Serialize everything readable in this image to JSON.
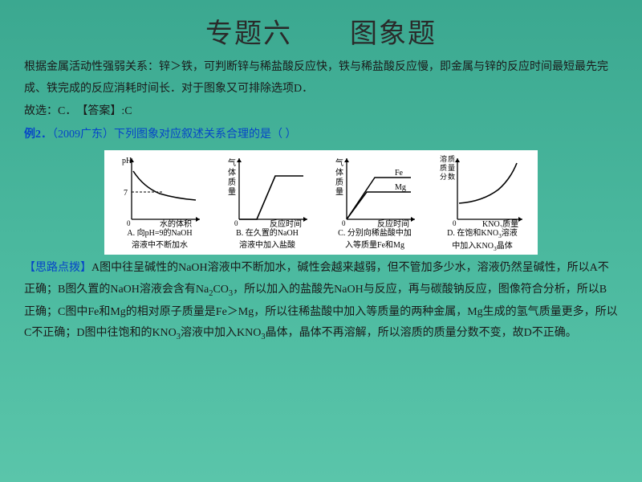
{
  "title": "专题六　　图象题",
  "intro": {
    "p1": "根据金属活动性强弱关系：锌＞铁，可判断锌与稀盐酸反应快，铁与稀盐酸反应慢，即金属与锌的反应时间最短最先完成、铁完成的反应消耗时间长．对于图象又可排除选项D．",
    "p2": "故选：C．　【答案】:C"
  },
  "example": {
    "prefix": "例2．",
    "source": "（2009广东）",
    "question": "下列图象对应叙述关系合理的是（  ）"
  },
  "charts": {
    "background": "#ffffff",
    "stroke": "#000000",
    "A": {
      "ylabel": "pH",
      "xlabel": "水的体积",
      "y_tick": "7",
      "caption1": "A. 向pH=9的NaOH",
      "caption2": "溶液中不断加水"
    },
    "B": {
      "ylabel_vert": "气体质量",
      "xlabel": "反应时间",
      "caption1": "B. 在久置的NaOH",
      "caption2": "溶液中加入盐酸"
    },
    "C": {
      "ylabel_vert": "气体质量",
      "xlabel": "反应时间",
      "line1": "Fe",
      "line2": "Mg",
      "caption1": "C. 分别向稀盐酸中加",
      "caption2": "入等质量Fe和Mg"
    },
    "D": {
      "ylabel_vert": "溶质质量分数",
      "xlabel_html": "KNO₃质量",
      "caption1_html": "D. 在饱和KNO₃溶液",
      "caption2_html": "中加入KNO₃晶体"
    }
  },
  "analysis": {
    "label": "【思路点拨】",
    "text_html": "A图中往呈碱性的NaOH溶液中不断加水，碱性会越来越弱，但不管加多少水，溶液仍然呈碱性，所以A不正确；B图久置的NaOH溶液会含有Na<sub>2</sub>CO<sub>3</sub>，所以加入的盐酸先NaOH与反应，再与碳酸钠反应，图像符合分析，所以B正确；C图中Fe和Mg的相对原子质量是Fe＞Mg，所以往稀盐酸中加入等质量的两种金属，Mg生成的氢气质量更多，所以C不正确；D图中往饱和的KNO<sub>3</sub>溶液中加入KNO<sub>3</sub>晶体，晶体不再溶解，所以溶质的质量分数不变，故D不正确。"
  }
}
